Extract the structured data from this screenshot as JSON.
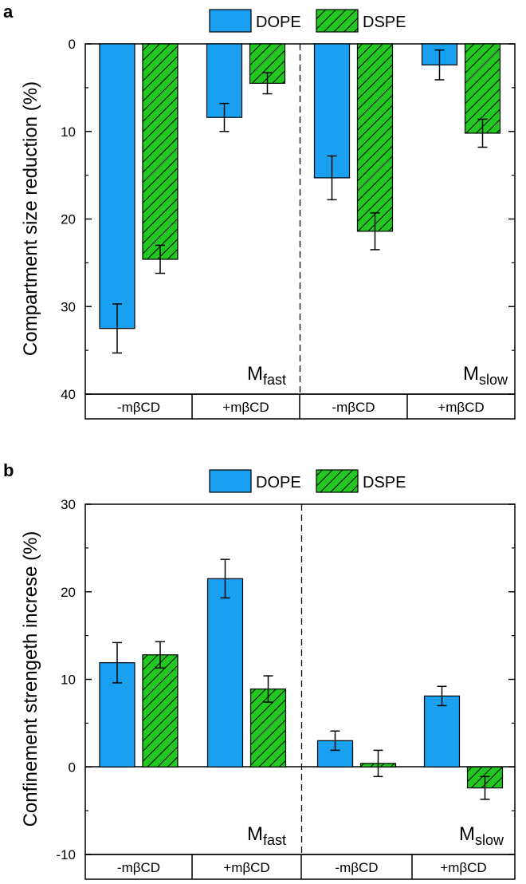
{
  "chart_data": [
    {
      "panel_label": "a",
      "type": "bar",
      "ylabel": "Compartment size reduction (%)",
      "ylim": [
        0,
        40
      ],
      "y_inverted": true,
      "yticks": [
        0,
        10,
        20,
        30,
        40
      ],
      "categories": [
        "-mβCD",
        "+mβCD",
        "-mβCD",
        "+mβCD"
      ],
      "group_labels": [
        {
          "main": "M",
          "sub": "fast"
        },
        {
          "main": "M",
          "sub": "slow"
        }
      ],
      "legend": [
        "DOPE",
        "DSPE"
      ],
      "legend_position": "top-center",
      "series": [
        {
          "name": "DOPE",
          "color": "#1aa0f0",
          "pattern": "solid",
          "values": [
            32.5,
            8.4,
            15.3,
            2.4
          ],
          "errors": [
            2.8,
            1.6,
            2.5,
            1.7
          ]
        },
        {
          "name": "DSPE",
          "color": "#22c722",
          "pattern": "hatched",
          "values": [
            24.6,
            4.5,
            21.4,
            10.2
          ],
          "errors": [
            1.6,
            1.2,
            2.1,
            1.6
          ]
        }
      ]
    },
    {
      "panel_label": "b",
      "type": "bar",
      "ylabel": "Confinement strengeth increse (%)",
      "ylim": [
        -10,
        30
      ],
      "y_inverted": false,
      "yticks": [
        -10,
        0,
        10,
        20,
        30
      ],
      "categories": [
        "-mβCD",
        "+mβCD",
        "-mβCD",
        "+mβCD"
      ],
      "group_labels": [
        {
          "main": "M",
          "sub": "fast"
        },
        {
          "main": "M",
          "sub": "slow"
        }
      ],
      "legend": [
        "DOPE",
        "DSPE"
      ],
      "legend_position": "top-center",
      "series": [
        {
          "name": "DOPE",
          "color": "#1aa0f0",
          "pattern": "solid",
          "values": [
            11.9,
            21.5,
            3.0,
            8.1
          ],
          "errors": [
            2.3,
            2.2,
            1.1,
            1.1
          ]
        },
        {
          "name": "DSPE",
          "color": "#22c722",
          "pattern": "hatched",
          "values": [
            12.8,
            8.9,
            0.4,
            -2.4
          ],
          "errors": [
            1.5,
            1.5,
            1.5,
            1.3
          ]
        }
      ]
    }
  ]
}
